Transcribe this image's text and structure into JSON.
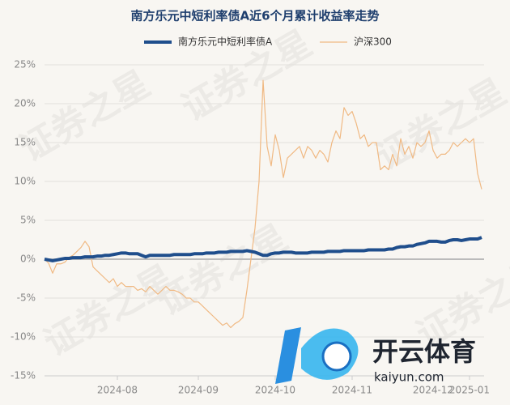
{
  "chart_data": {
    "type": "line",
    "title": "南方乐元中短利率债A近6个月累计收益率走势",
    "watermark": "证券之星",
    "logo_text": "开云体育",
    "logo_url": "kaiyun.com",
    "categories": [
      null,
      null,
      null,
      null,
      null,
      null,
      null,
      null,
      null,
      null,
      null,
      null,
      null,
      null,
      null,
      null,
      null,
      null,
      "2024-08",
      null,
      null,
      null,
      null,
      null,
      null,
      null,
      null,
      null,
      null,
      null,
      null,
      null,
      null,
      null,
      null,
      null,
      null,
      null,
      "2024-09",
      null,
      null,
      null,
      null,
      null,
      null,
      null,
      null,
      null,
      null,
      null,
      null,
      null,
      null,
      null,
      null,
      null,
      null,
      "2024-10",
      null,
      null,
      null,
      null,
      null,
      null,
      null,
      null,
      null,
      null,
      null,
      null,
      null,
      null,
      null,
      null,
      null,
      null,
      "2024-11",
      null,
      null,
      null,
      null,
      null,
      null,
      null,
      null,
      null,
      null,
      null,
      null,
      null,
      null,
      null,
      null,
      null,
      null,
      null,
      "2024-12",
      null,
      null,
      null,
      null,
      null,
      null,
      null,
      null,
      "2025-01",
      null,
      null,
      null
    ],
    "series": [
      {
        "name": "南方乐元中短利率债A",
        "color": "#1f4e8c",
        "width": 4,
        "values": [
          0,
          -0.1,
          -0.2,
          -0.1,
          0,
          0.1,
          0.1,
          0.2,
          0.2,
          0.2,
          0.3,
          0.3,
          0.3,
          0.4,
          0.4,
          0.5,
          0.5,
          0.6,
          0.7,
          0.8,
          0.8,
          0.7,
          0.7,
          0.7,
          0.5,
          0.3,
          0.5,
          0.5,
          0.5,
          0.5,
          0.5,
          0.5,
          0.6,
          0.6,
          0.6,
          0.6,
          0.6,
          0.7,
          0.7,
          0.7,
          0.8,
          0.8,
          0.8,
          0.9,
          0.9,
          0.9,
          1.0,
          1.0,
          1.0,
          1.0,
          1.1,
          1.0,
          0.9,
          0.7,
          0.5,
          0.5,
          0.7,
          0.8,
          0.8,
          0.9,
          0.9,
          0.9,
          0.8,
          0.8,
          0.8,
          0.8,
          0.9,
          0.9,
          0.9,
          0.9,
          1.0,
          1.0,
          1.0,
          1.0,
          1.1,
          1.1,
          1.1,
          1.1,
          1.1,
          1.1,
          1.2,
          1.2,
          1.2,
          1.2,
          1.2,
          1.3,
          1.3,
          1.5,
          1.6,
          1.6,
          1.7,
          1.7,
          1.9,
          2.0,
          2.1,
          2.3,
          2.3,
          2.3,
          2.2,
          2.2,
          2.4,
          2.5,
          2.5,
          2.4,
          2.5,
          2.6,
          2.6,
          2.6,
          2.8
        ]
      },
      {
        "name": "沪深300",
        "color": "#f0b983",
        "width": 1.2,
        "values": [
          0,
          -0.5,
          -1.8,
          -0.6,
          -0.6,
          -0.4,
          0.2,
          0.5,
          1.0,
          1.5,
          2.3,
          1.6,
          -1.0,
          -1.5,
          -2.0,
          -2.5,
          -3.0,
          -2.5,
          -3.5,
          -3.0,
          -3.5,
          -3.5,
          -3.5,
          -4.0,
          -3.8,
          -4.2,
          -3.5,
          -4.0,
          -4.5,
          -4.0,
          -3.5,
          -4.0,
          -4.0,
          -4.2,
          -4.5,
          -5.0,
          -5.0,
          -5.5,
          -5.5,
          -6.0,
          -6.5,
          -7.0,
          -7.5,
          -8.0,
          -8.5,
          -8.2,
          -8.8,
          -8.3,
          -8.0,
          -7.5,
          -4.0,
          0.0,
          4.0,
          10.0,
          23.0,
          14.5,
          12.0,
          16.0,
          14.0,
          10.5,
          13.0,
          13.5,
          14.0,
          14.5,
          13.0,
          14.5,
          14.0,
          13.0,
          14.0,
          13.5,
          12.5,
          15.0,
          16.5,
          15.5,
          19.5,
          18.5,
          19.0,
          17.5,
          15.5,
          16.0,
          14.5,
          15.0,
          15.0,
          11.5,
          12.0,
          11.5,
          13.5,
          12.0,
          15.5,
          13.5,
          14.5,
          13.0,
          15.0,
          14.5,
          15.0,
          16.5,
          14.0,
          13.0,
          13.5,
          13.5,
          14.0,
          15.0,
          14.5,
          15.0,
          15.5,
          15.0,
          15.5,
          11.0,
          9.0
        ]
      }
    ],
    "ylim": [
      -15,
      25
    ],
    "yticks": [
      {
        "value": -15,
        "label": "-15%"
      },
      {
        "value": -10,
        "label": "-10%"
      },
      {
        "value": -5,
        "label": "-5%"
      },
      {
        "value": 0,
        "label": "0%"
      },
      {
        "value": 5,
        "label": "5%"
      },
      {
        "value": 10,
        "label": "10%"
      },
      {
        "value": 15,
        "label": "15%"
      },
      {
        "value": 20,
        "label": "20%"
      },
      {
        "value": 25,
        "label": "25%"
      }
    ],
    "grid": true
  }
}
